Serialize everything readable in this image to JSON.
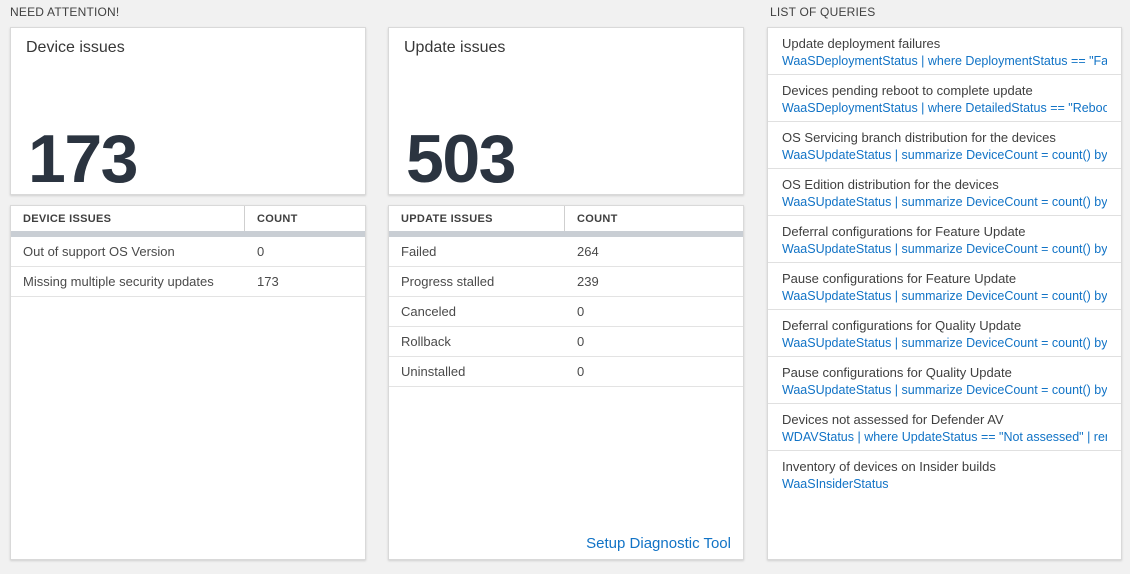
{
  "colors": {
    "accent_blue": "#1173c6",
    "big_number_text": "#2b3440",
    "grid_divider_bar": "#c9ced4",
    "page_background": "#f1f1f1"
  },
  "need_attention": {
    "header": "NEED ATTENTION!",
    "device_tile": {
      "title": "Device issues",
      "value": "173"
    },
    "device_table": {
      "columns": [
        "DEVICE ISSUES",
        "COUNT"
      ],
      "rows": [
        [
          "Out of support OS Version",
          "0"
        ],
        [
          "Missing multiple security updates",
          "173"
        ]
      ]
    },
    "update_tile": {
      "title": "Update issues",
      "value": "503"
    },
    "update_table": {
      "columns": [
        "UPDATE ISSUES",
        "COUNT"
      ],
      "rows": [
        [
          "Failed",
          "264"
        ],
        [
          "Progress stalled",
          "239"
        ],
        [
          "Canceled",
          "0"
        ],
        [
          "Rollback",
          "0"
        ],
        [
          "Uninstalled",
          "0"
        ]
      ],
      "footer_link": "Setup Diagnostic Tool"
    }
  },
  "queries": {
    "header": "LIST OF QUERIES",
    "items": [
      {
        "title": "Update deployment failures",
        "query": "WaaSDeploymentStatus | where DeploymentStatus == \"Failed\" |..."
      },
      {
        "title": "Devices pending reboot to complete update",
        "query": "WaaSDeploymentStatus | where DetailedStatus == \"Reboot pend..."
      },
      {
        "title": "OS Servicing branch distribution for the devices",
        "query": "WaaSUpdateStatus | summarize DeviceCount = count() by OSSer..."
      },
      {
        "title": "OS Edition distribution for the devices",
        "query": "WaaSUpdateStatus | summarize DeviceCount = count() by OSEdit..."
      },
      {
        "title": "Deferral configurations for Feature Update",
        "query": "WaaSUpdateStatus | summarize DeviceCount = count() by Featur..."
      },
      {
        "title": "Pause configurations for Feature Update",
        "query": "WaaSUpdateStatus | summarize DeviceCount = count() by Featur..."
      },
      {
        "title": "Deferral configurations for Quality Update",
        "query": "WaaSUpdateStatus | summarize DeviceCount = count() by Qualit..."
      },
      {
        "title": "Pause configurations for Quality Update",
        "query": "WaaSUpdateStatus | summarize DeviceCount = count() by Qualit..."
      },
      {
        "title": "Devices not assessed for Defender AV",
        "query": "WDAVStatus | where UpdateStatus == \"Not assessed\" | render ta..."
      },
      {
        "title": "Inventory of devices on Insider builds",
        "query": "WaaSInsiderStatus"
      }
    ]
  }
}
